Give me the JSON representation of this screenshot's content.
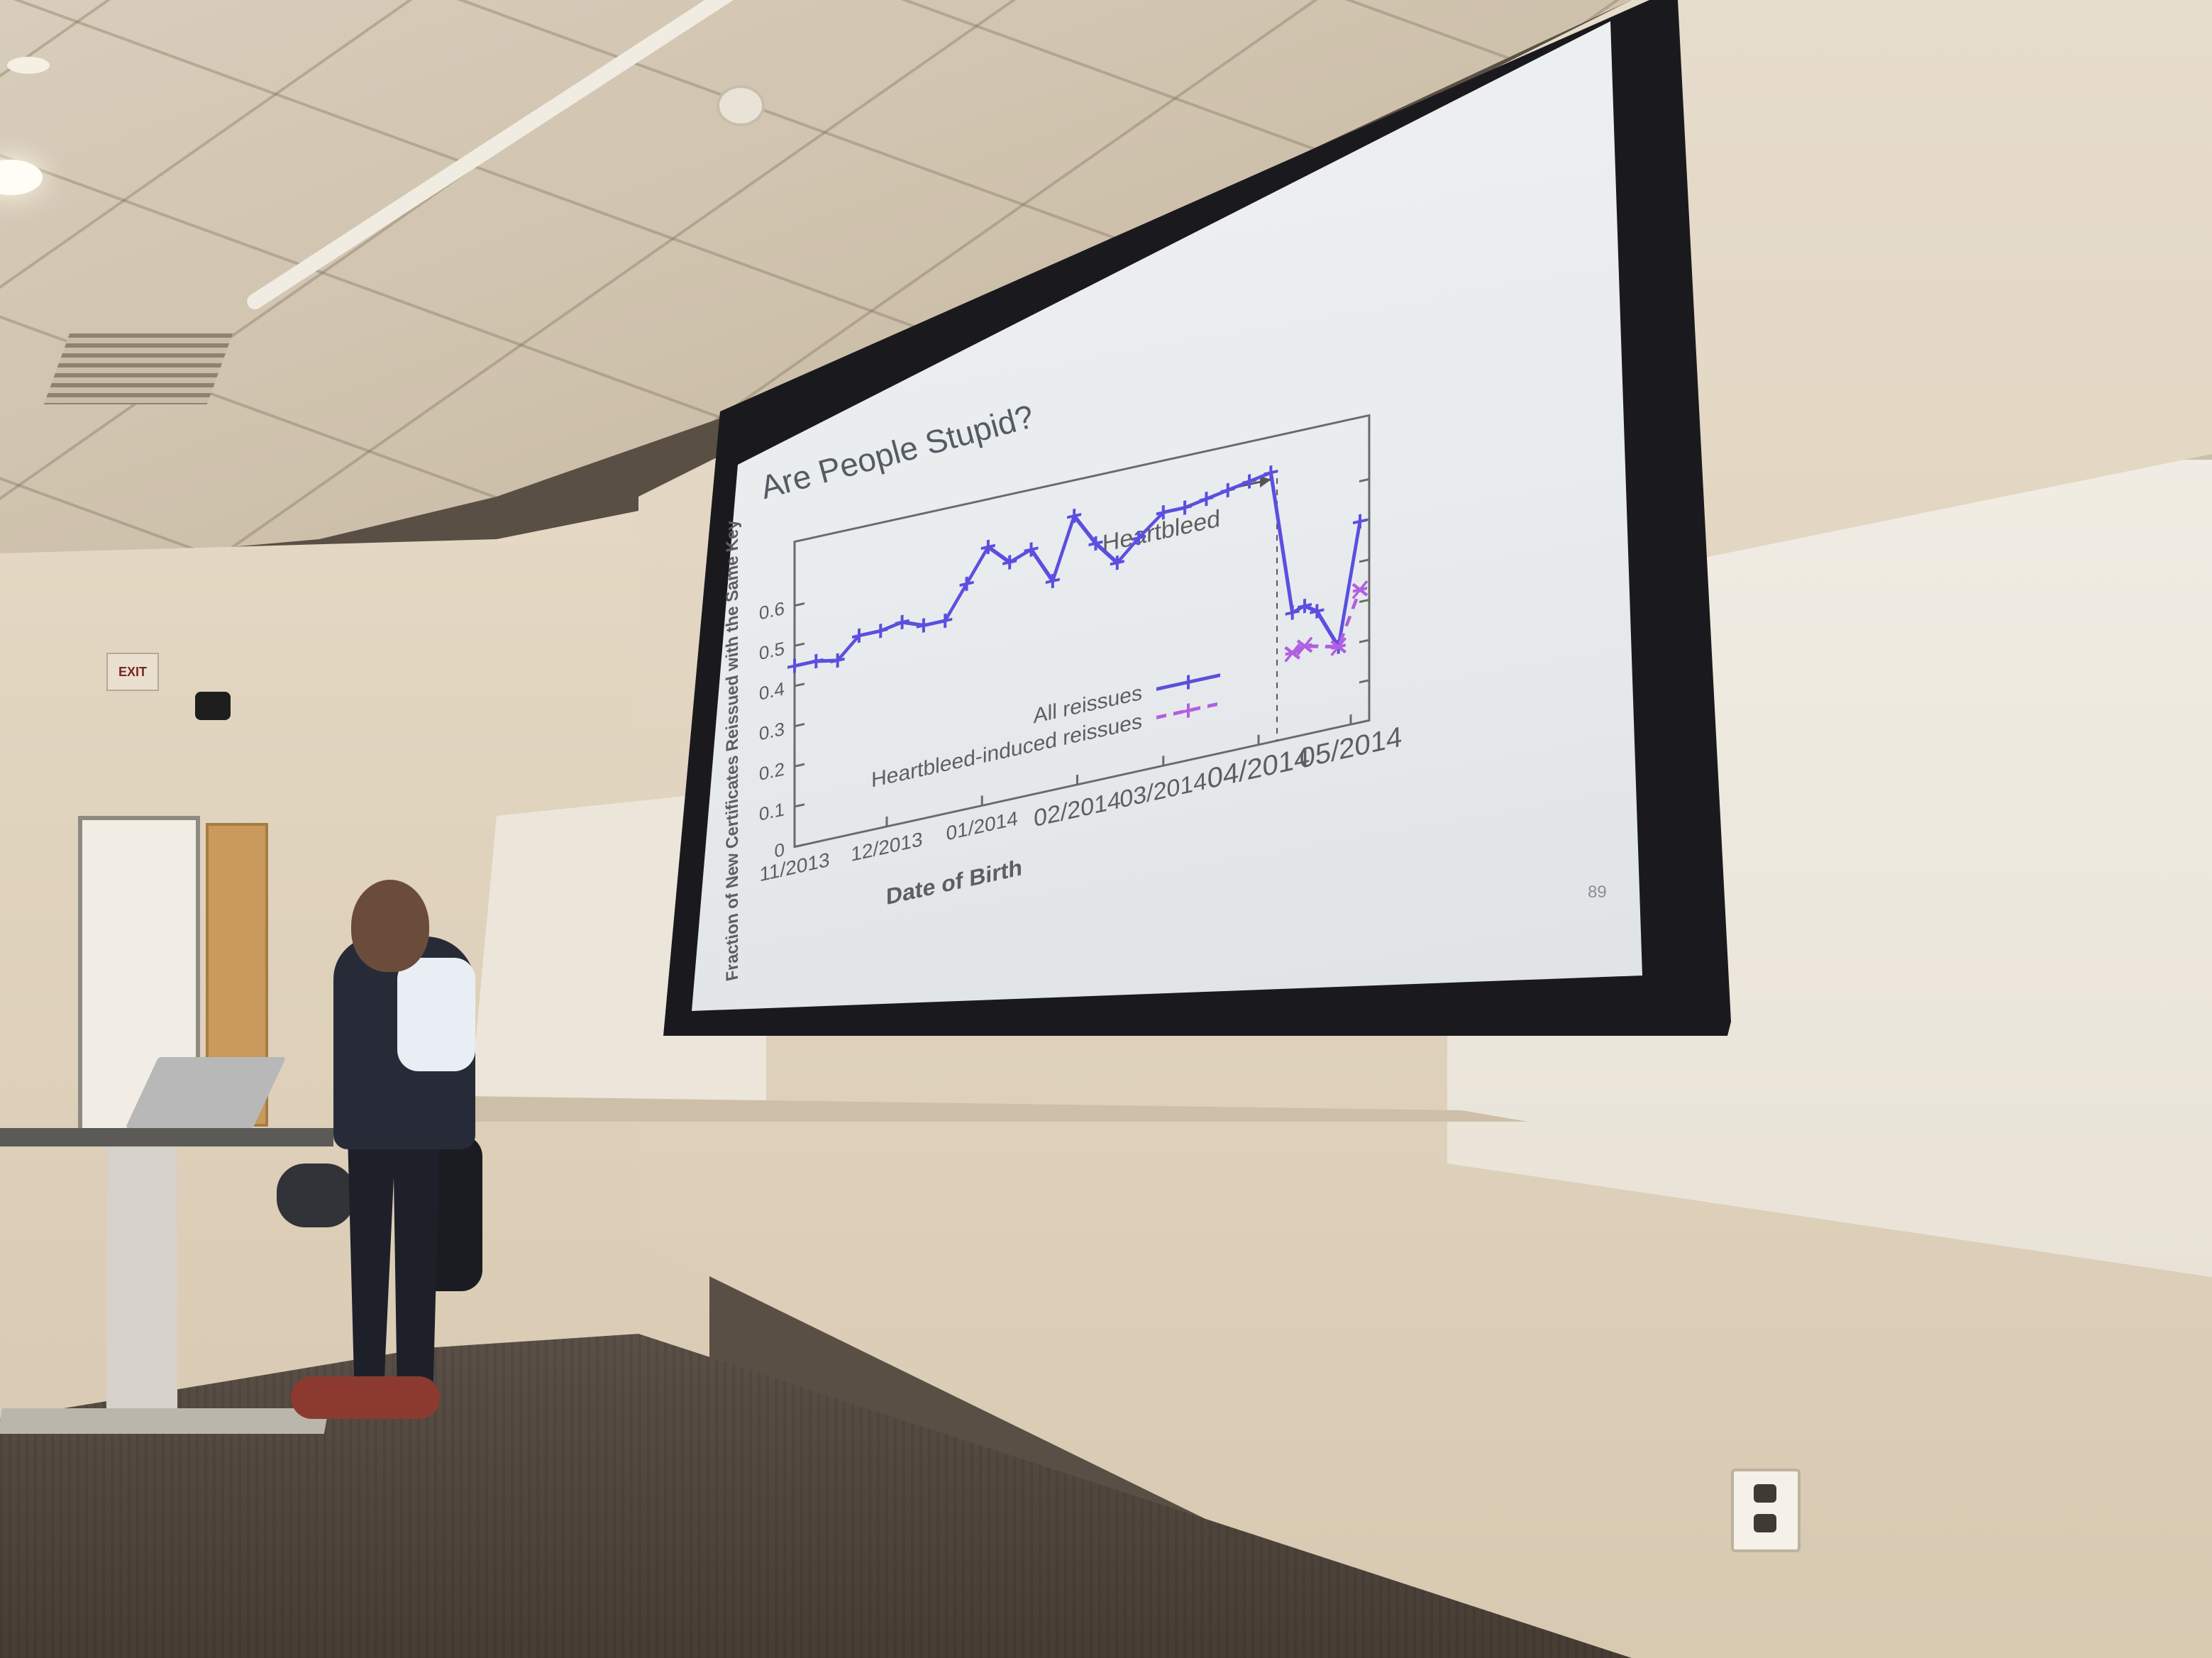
{
  "slide": {
    "title": "Are People Stupid?",
    "page_number": "89"
  },
  "chart_data": {
    "type": "line",
    "title": "",
    "xlabel": "Date of Birth",
    "ylabel": "Fraction of New Certificates Reissued with the Same Key",
    "ylim": [
      0,
      0.6
    ],
    "yticks": [
      "0",
      "0.1",
      "0.2",
      "0.3",
      "0.4",
      "0.5",
      "0.6"
    ],
    "xticks": [
      "11/2013",
      "12/2013",
      "01/2014",
      "02/2014",
      "03/2014",
      "04/2014",
      "05/2014"
    ],
    "annotation": "Heartbleed",
    "legend_position": "bottom-center",
    "series": [
      {
        "name": "All reissues",
        "color": "#5b4fe0",
        "style": "solid",
        "marker": "plus",
        "points": [
          [
            "2013-11-01",
            0.45
          ],
          [
            "2013-11-08",
            0.45
          ],
          [
            "2013-11-15",
            0.44
          ],
          [
            "2013-11-22",
            0.49
          ],
          [
            "2013-11-29",
            0.49
          ],
          [
            "2013-12-06",
            0.5
          ],
          [
            "2013-12-13",
            0.48
          ],
          [
            "2013-12-20",
            0.48
          ],
          [
            "2013-12-27",
            0.56
          ],
          [
            "2014-01-03",
            0.64
          ],
          [
            "2014-01-10",
            0.59
          ],
          [
            "2014-01-17",
            0.61
          ],
          [
            "2014-01-24",
            0.52
          ],
          [
            "2014-01-31",
            0.67
          ],
          [
            "2014-02-07",
            0.59
          ],
          [
            "2014-02-14",
            0.53
          ],
          [
            "2014-02-21",
            0.58
          ],
          [
            "2014-03-01",
            0.63
          ],
          [
            "2014-03-08",
            0.63
          ],
          [
            "2014-03-15",
            0.64
          ],
          [
            "2014-03-22",
            0.65
          ],
          [
            "2014-03-29",
            0.66
          ],
          [
            "2014-04-05",
            0.67
          ],
          [
            "2014-04-12",
            0.31
          ],
          [
            "2014-04-16",
            0.32
          ],
          [
            "2014-04-20",
            0.3
          ],
          [
            "2014-04-27",
            0.2
          ],
          [
            "2014-05-04",
            0.5
          ]
        ]
      },
      {
        "name": "Heartbleed-induced reissues",
        "color": "#b060e0",
        "style": "dashed",
        "marker": "asterisk",
        "points": [
          [
            "2014-04-12",
            0.21
          ],
          [
            "2014-04-16",
            0.22
          ],
          [
            "2014-04-27",
            0.2
          ],
          [
            "2014-05-04",
            0.33
          ]
        ]
      }
    ],
    "x_range": [
      "2013-11-01",
      "2014-05-07"
    ],
    "heartbleed_date": "2014-04-07"
  }
}
